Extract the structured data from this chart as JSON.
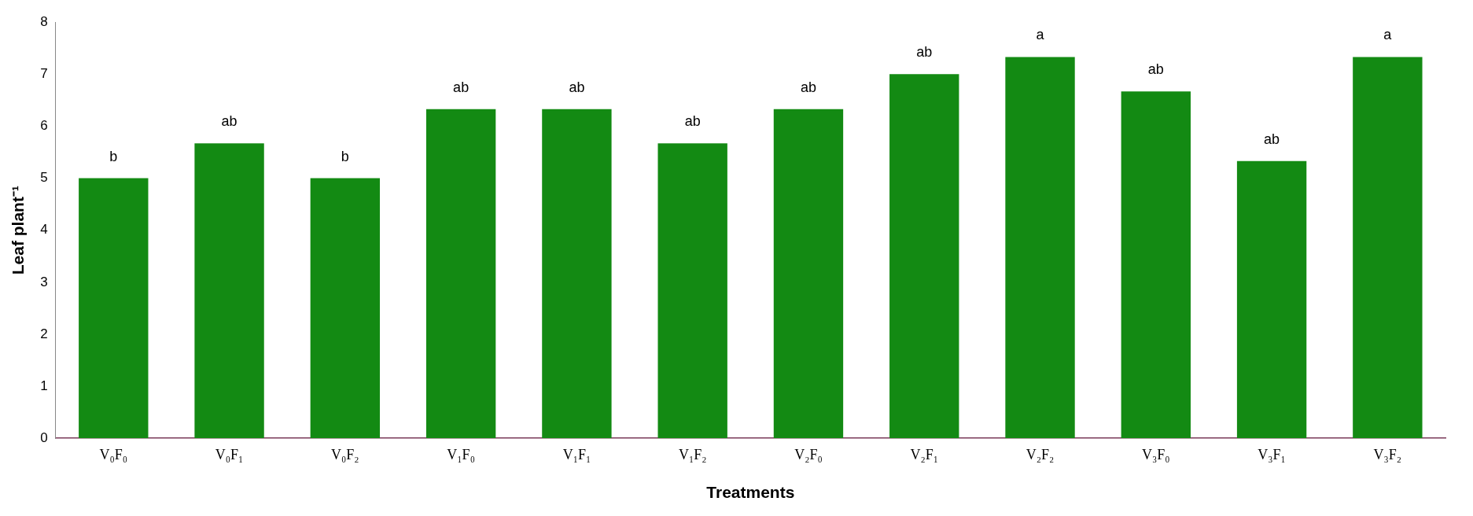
{
  "chart_data": {
    "type": "bar",
    "xlabel": "Treatments",
    "ylabel": "Leaf plant⁻¹",
    "categories": [
      "V₀F₀",
      "V₀F₁",
      "V₀F₂",
      "V₁F₀",
      "V₁F₁",
      "V₁F₂",
      "V₂F₀",
      "V₂F₁",
      "V₂F₂",
      "V₃F₀",
      "V₃F₁",
      "V₃F₂"
    ],
    "values": [
      5.0,
      5.67,
      5.0,
      6.33,
      6.33,
      5.67,
      6.33,
      7.0,
      7.33,
      6.67,
      5.33,
      7.33
    ],
    "color": "#138a13",
    "ylim": [
      0,
      8
    ],
    "yticks": [
      0,
      1,
      2,
      3,
      4,
      5,
      6,
      7,
      8
    ],
    "grid": false,
    "legend": false,
    "annotations": [
      {
        "text": "b",
        "x": "V₀F₀",
        "y": 5.0
      },
      {
        "text": "ab",
        "x": "V₀F₁",
        "y": 5.67
      },
      {
        "text": "b",
        "x": "V₀F₂",
        "y": 5.0
      },
      {
        "text": "ab",
        "x": "V₁F₀",
        "y": 6.33
      },
      {
        "text": "ab",
        "x": "V₁F₁",
        "y": 6.33
      },
      {
        "text": "ab",
        "x": "V₁F₂",
        "y": 5.67
      },
      {
        "text": "ab",
        "x": "V₂F₀",
        "y": 6.33
      },
      {
        "text": "ab",
        "x": "V₂F₁",
        "y": 7.0
      },
      {
        "text": "a",
        "x": "V₂F₂",
        "y": 7.33
      },
      {
        "text": "ab",
        "x": "V₃F₀",
        "y": 6.67
      },
      {
        "text": "ab",
        "x": "V₃F₁",
        "y": 5.33
      },
      {
        "text": "a",
        "x": "V₃F₂",
        "y": 7.33
      }
    ]
  }
}
